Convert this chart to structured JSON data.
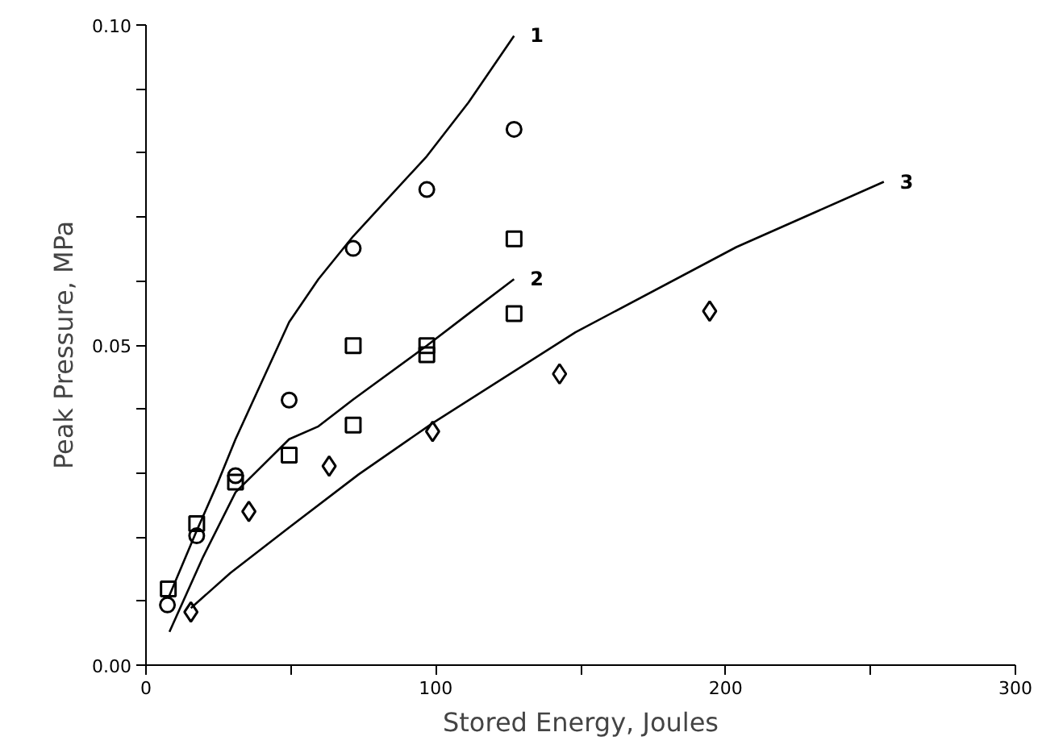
{
  "chart_data": {
    "type": "scatter",
    "xlabel": "Stored Energy, Joules",
    "ylabel": "Peak Pressure, MPa",
    "xlim": [
      0,
      300
    ],
    "ylim": [
      0,
      0.1
    ],
    "xticks": [
      0,
      {
        "value": 50,
        "label": null
      },
      100,
      {
        "value": 150,
        "label": null
      },
      200,
      {
        "value": 250,
        "label": null
      },
      300
    ],
    "yticks": [
      {
        "value": 0,
        "label": "0.00"
      },
      {
        "value": 0.01,
        "label": null
      },
      {
        "value": 0.02,
        "label": null
      },
      {
        "value": 0.03,
        "label": null
      },
      {
        "value": 0.04,
        "label": null
      },
      {
        "value": 0.05,
        "label": "0.05"
      },
      {
        "value": 0.06,
        "label": null
      },
      {
        "value": 0.07,
        "label": null
      },
      {
        "value": 0.08,
        "label": null
      },
      {
        "value": 0.09,
        "label": null
      },
      {
        "value": 0.1,
        "label": "0.10"
      }
    ],
    "grid": false,
    "series": [
      {
        "marker": "circle",
        "color": "#000000",
        "x": [
          7.4,
          17.5,
          30.9,
          49.4,
          71.5,
          96.9,
          127
        ],
        "values": [
          0.0094,
          0.0202,
          0.0296,
          0.0414,
          0.0651,
          0.0743,
          0.0837
        ]
      },
      {
        "marker": "square",
        "color": "#000000",
        "x": [
          7.7,
          17.5,
          30.9,
          49.4,
          71.5,
          71.5,
          96.9,
          96.9,
          127,
          127
        ],
        "values": [
          0.0119,
          0.0221,
          0.0286,
          0.0328,
          0.0499,
          0.0375,
          0.0499,
          0.0485,
          0.0666,
          0.0549
        ]
      },
      {
        "marker": "diamond",
        "color": "#000000",
        "x": [
          15.5,
          35.5,
          63.2,
          98.9,
          142.7,
          194.5
        ],
        "values": [
          0.0083,
          0.024,
          0.0311,
          0.0365,
          0.0455,
          0.0553
        ]
      },
      {
        "type": "line",
        "name": "1",
        "marker": "none",
        "color": "#000000",
        "x": [
          8.1,
          17.5,
          24.4,
          30.9,
          49.4,
          59.5,
          71.5,
          96.9,
          111.3,
          127
        ],
        "values": [
          0.0109,
          0.021,
          0.0281,
          0.0353,
          0.0536,
          0.0603,
          0.067,
          0.0795,
          0.0879,
          0.0983
        ]
      },
      {
        "type": "line",
        "name": "2",
        "marker": "none",
        "color": "#000000",
        "x": [
          8.1,
          19.7,
          30.9,
          49.4,
          59.5,
          71.5,
          96.9,
          111.3,
          127
        ],
        "values": [
          0.0052,
          0.0169,
          0.027,
          0.0353,
          0.0373,
          0.0415,
          0.0499,
          0.0549,
          0.0603
        ]
      },
      {
        "type": "line",
        "name": "3",
        "marker": "none",
        "color": "#000000",
        "x": [
          15.5,
          29.1,
          49.4,
          73.4,
          98.9,
          148.2,
          203.7,
          254.6
        ],
        "values": [
          0.0089,
          0.0144,
          0.0215,
          0.0298,
          0.0378,
          0.052,
          0.0653,
          0.0755
        ]
      }
    ]
  }
}
